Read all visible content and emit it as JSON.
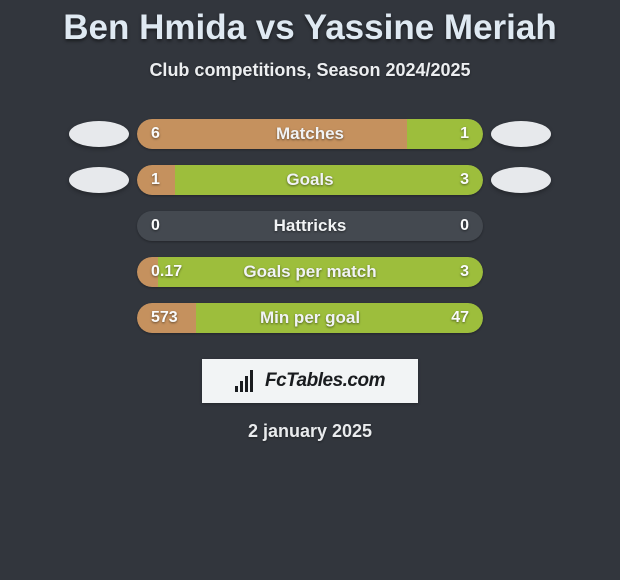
{
  "title": "Ben Hmida vs Yassine Meriah",
  "subtitle": "Club competitions, Season 2024/2025",
  "date": "2 january 2025",
  "brand": {
    "text": "FcTables.com"
  },
  "colors": {
    "left_bar": "#c5915e",
    "right_bar": "#9dbe3c",
    "track": "#444950",
    "avatar": "#e7e9ec",
    "background": "#32363d"
  },
  "stats": [
    {
      "label": "Matches",
      "left_value": "6",
      "right_value": "1",
      "left_pct": 78,
      "right_pct": 22,
      "show_avatars": true
    },
    {
      "label": "Goals",
      "left_value": "1",
      "right_value": "3",
      "left_pct": 11,
      "right_pct": 89,
      "show_avatars": true
    },
    {
      "label": "Hattricks",
      "left_value": "0",
      "right_value": "0",
      "left_pct": 0,
      "right_pct": 0,
      "show_avatars": false
    },
    {
      "label": "Goals per match",
      "left_value": "0.17",
      "right_value": "3",
      "left_pct": 6,
      "right_pct": 94,
      "show_avatars": false
    },
    {
      "label": "Min per goal",
      "left_value": "573",
      "right_value": "47",
      "left_pct": 17,
      "right_pct": 83,
      "show_avatars": false
    }
  ]
}
